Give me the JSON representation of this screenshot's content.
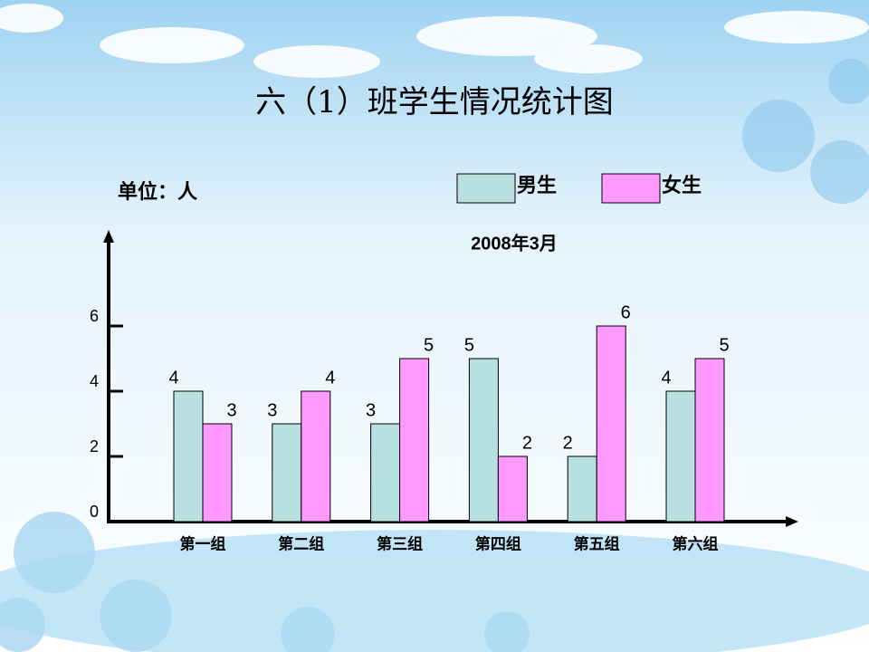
{
  "chart_data": {
    "type": "bar",
    "title": "六（1）班学生情况统计图",
    "subtitle": "2008年3月",
    "unit_label": "单位：人",
    "categories": [
      "第一组",
      "第二组",
      "第三组",
      "第四组",
      "第五组",
      "第六组"
    ],
    "series": [
      {
        "name": "男生",
        "color": "#b9e0e0",
        "values": [
          4,
          3,
          3,
          5,
          2,
          4
        ]
      },
      {
        "name": "女生",
        "color": "#ff99ff",
        "values": [
          3,
          4,
          5,
          2,
          6,
          5
        ]
      }
    ],
    "ylim": [
      0,
      9
    ],
    "yticks": [
      0,
      2,
      4,
      6
    ],
    "grid": false,
    "legend": "top"
  }
}
